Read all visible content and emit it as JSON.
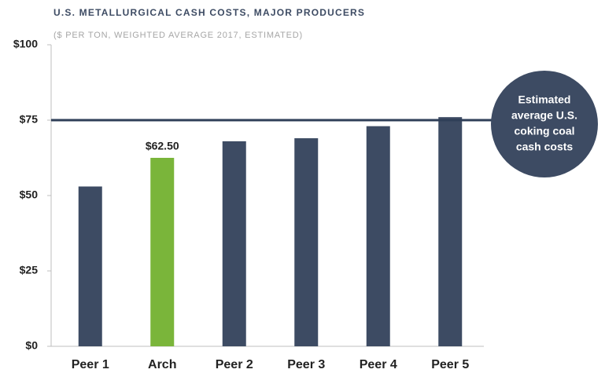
{
  "chart_data": {
    "type": "bar",
    "title": "U.S. METALLURGICAL CASH COSTS, MAJOR PRODUCERS",
    "subtitle": "($ PER TON, WEIGHTED AVERAGE 2017, ESTIMATED)",
    "categories": [
      "Peer 1",
      "Arch",
      "Peer 2",
      "Peer 3",
      "Peer 4",
      "Peer 5"
    ],
    "values": [
      53,
      62.5,
      68,
      69,
      73,
      76
    ],
    "value_labels": [
      null,
      "$62.50",
      null,
      null,
      null,
      null
    ],
    "colors": [
      "#3d4b63",
      "#7ab53a",
      "#3d4b63",
      "#3d4b63",
      "#3d4b63",
      "#3d4b63"
    ],
    "ylim": [
      0,
      100
    ],
    "yticks": [
      {
        "value": 0,
        "label": "$0"
      },
      {
        "value": 25,
        "label": "$25"
      },
      {
        "value": 50,
        "label": "$50"
      },
      {
        "value": 75,
        "label": "$75"
      },
      {
        "value": 100,
        "label": "$100"
      }
    ],
    "reference_line": {
      "value": 75,
      "color": "#2f3f58",
      "annotation": [
        "Estimated",
        "average U.S.",
        "coking coal",
        "cash costs"
      ]
    }
  }
}
